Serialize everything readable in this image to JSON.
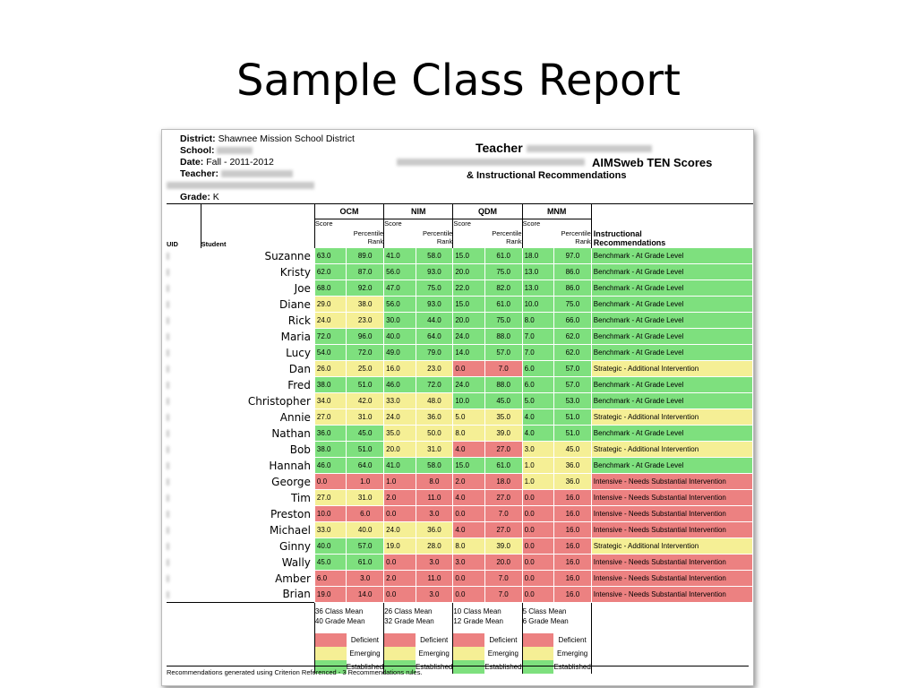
{
  "slide": {
    "title": "Sample Class Report"
  },
  "header": {
    "district_label": "District:",
    "district_value": "Shawnee Mission School District",
    "school_label": "School:",
    "date_label": "Date:",
    "date_value": "Fall - 2011-2012",
    "teacher_label": "Teacher:",
    "grade_label": "Grade:",
    "grade_value": "K",
    "teacher_title": "Teacher",
    "aims_title": "AIMSweb TEN Scores",
    "instr_title": "& Instructional Recommendations"
  },
  "table": {
    "uid_label": "UID",
    "student_label": "Student",
    "groups": [
      "OCM",
      "NIM",
      "QDM",
      "MNM"
    ],
    "score_label": "Score",
    "pr_label_1": "Percentile",
    "pr_label_2": "Rank",
    "rec_label_1": "Instructional",
    "rec_label_2": "Recommendations",
    "colors": {
      "green": "#7ee07e",
      "yellow": "#f5ef95",
      "red": "#ec8181"
    },
    "rows": [
      {
        "name": "Suzanne",
        "vals": [
          "63.0",
          "89.0",
          "41.0",
          "58.0",
          "15.0",
          "61.0",
          "18.0",
          "97.0"
        ],
        "rec": "Benchmark - At Grade Level",
        "c": [
          "g",
          "g",
          "g",
          "g",
          "g"
        ]
      },
      {
        "name": "Kristy",
        "vals": [
          "62.0",
          "87.0",
          "56.0",
          "93.0",
          "20.0",
          "75.0",
          "13.0",
          "86.0"
        ],
        "rec": "Benchmark - At Grade Level",
        "c": [
          "g",
          "g",
          "g",
          "g",
          "g"
        ]
      },
      {
        "name": "Joe",
        "vals": [
          "68.0",
          "92.0",
          "47.0",
          "75.0",
          "22.0",
          "82.0",
          "13.0",
          "86.0"
        ],
        "rec": "Benchmark - At Grade Level",
        "c": [
          "g",
          "g",
          "g",
          "g",
          "g"
        ]
      },
      {
        "name": "Diane",
        "vals": [
          "29.0",
          "38.0",
          "56.0",
          "93.0",
          "15.0",
          "61.0",
          "10.0",
          "75.0"
        ],
        "rec": "Benchmark - At Grade Level",
        "c": [
          "y",
          "g",
          "g",
          "g",
          "g"
        ]
      },
      {
        "name": "Rick",
        "vals": [
          "24.0",
          "23.0",
          "30.0",
          "44.0",
          "20.0",
          "75.0",
          "8.0",
          "66.0"
        ],
        "rec": "Benchmark - At Grade Level",
        "c": [
          "y",
          "g",
          "g",
          "g",
          "g"
        ]
      },
      {
        "name": "Maria",
        "vals": [
          "72.0",
          "96.0",
          "40.0",
          "64.0",
          "24.0",
          "88.0",
          "7.0",
          "62.0"
        ],
        "rec": "Benchmark - At Grade Level",
        "c": [
          "g",
          "g",
          "g",
          "g",
          "g"
        ]
      },
      {
        "name": "Lucy",
        "vals": [
          "54.0",
          "72.0",
          "49.0",
          "79.0",
          "14.0",
          "57.0",
          "7.0",
          "62.0"
        ],
        "rec": "Benchmark - At Grade Level",
        "c": [
          "g",
          "g",
          "g",
          "g",
          "g"
        ]
      },
      {
        "name": "Dan",
        "vals": [
          "26.0",
          "25.0",
          "16.0",
          "23.0",
          "0.0",
          "7.0",
          "6.0",
          "57.0"
        ],
        "rec": "Strategic - Additional Intervention",
        "c": [
          "y",
          "y",
          "r",
          "g",
          "y"
        ]
      },
      {
        "name": "Fred",
        "vals": [
          "38.0",
          "51.0",
          "46.0",
          "72.0",
          "24.0",
          "88.0",
          "6.0",
          "57.0"
        ],
        "rec": "Benchmark - At Grade Level",
        "c": [
          "g",
          "g",
          "g",
          "g",
          "g"
        ]
      },
      {
        "name": "Christopher",
        "vals": [
          "34.0",
          "42.0",
          "33.0",
          "48.0",
          "10.0",
          "45.0",
          "5.0",
          "53.0"
        ],
        "rec": "Benchmark - At Grade Level",
        "c": [
          "y",
          "y",
          "g",
          "g",
          "g"
        ]
      },
      {
        "name": "Annie",
        "vals": [
          "27.0",
          "31.0",
          "24.0",
          "36.0",
          "5.0",
          "35.0",
          "4.0",
          "51.0"
        ],
        "rec": "Strategic - Additional Intervention",
        "c": [
          "y",
          "y",
          "y",
          "g",
          "y"
        ]
      },
      {
        "name": "Nathan",
        "vals": [
          "36.0",
          "45.0",
          "35.0",
          "50.0",
          "8.0",
          "39.0",
          "4.0",
          "51.0"
        ],
        "rec": "Benchmark - At Grade Level",
        "c": [
          "g",
          "y",
          "y",
          "g",
          "g"
        ]
      },
      {
        "name": "Bob",
        "vals": [
          "38.0",
          "51.0",
          "20.0",
          "31.0",
          "4.0",
          "27.0",
          "3.0",
          "45.0"
        ],
        "rec": "Strategic - Additional Intervention",
        "c": [
          "g",
          "y",
          "r",
          "y",
          "y"
        ]
      },
      {
        "name": "Hannah",
        "vals": [
          "46.0",
          "64.0",
          "41.0",
          "58.0",
          "15.0",
          "61.0",
          "1.0",
          "36.0"
        ],
        "rec": "Benchmark - At Grade Level",
        "c": [
          "g",
          "g",
          "g",
          "y",
          "g"
        ]
      },
      {
        "name": "George",
        "vals": [
          "0.0",
          "1.0",
          "1.0",
          "8.0",
          "2.0",
          "18.0",
          "1.0",
          "36.0"
        ],
        "rec": "Intensive - Needs Substantial Intervention",
        "c": [
          "r",
          "r",
          "r",
          "y",
          "r"
        ]
      },
      {
        "name": "Tim",
        "vals": [
          "27.0",
          "31.0",
          "2.0",
          "11.0",
          "4.0",
          "27.0",
          "0.0",
          "16.0"
        ],
        "rec": "Intensive - Needs Substantial Intervention",
        "c": [
          "y",
          "r",
          "r",
          "r",
          "r"
        ]
      },
      {
        "name": "Preston",
        "vals": [
          "10.0",
          "6.0",
          "0.0",
          "3.0",
          "0.0",
          "7.0",
          "0.0",
          "16.0"
        ],
        "rec": "Intensive - Needs Substantial Intervention",
        "c": [
          "r",
          "r",
          "r",
          "r",
          "r"
        ]
      },
      {
        "name": "Michael",
        "vals": [
          "33.0",
          "40.0",
          "24.0",
          "36.0",
          "4.0",
          "27.0",
          "0.0",
          "16.0"
        ],
        "rec": "Intensive - Needs Substantial Intervention",
        "c": [
          "y",
          "y",
          "r",
          "r",
          "r"
        ]
      },
      {
        "name": "Ginny",
        "vals": [
          "40.0",
          "57.0",
          "19.0",
          "28.0",
          "8.0",
          "39.0",
          "0.0",
          "16.0"
        ],
        "rec": "Strategic - Additional Intervention",
        "c": [
          "g",
          "y",
          "y",
          "r",
          "y"
        ]
      },
      {
        "name": "Wally",
        "vals": [
          "45.0",
          "61.0",
          "0.0",
          "3.0",
          "3.0",
          "20.0",
          "0.0",
          "16.0"
        ],
        "rec": "Intensive - Needs Substantial Intervention",
        "c": [
          "g",
          "r",
          "r",
          "r",
          "r"
        ]
      },
      {
        "name": "Amber",
        "vals": [
          "6.0",
          "3.0",
          "2.0",
          "11.0",
          "0.0",
          "7.0",
          "0.0",
          "16.0"
        ],
        "rec": "Intensive - Needs Substantial Intervention",
        "c": [
          "r",
          "r",
          "r",
          "r",
          "r"
        ]
      },
      {
        "name": "Brian",
        "vals": [
          "19.0",
          "14.0",
          "0.0",
          "3.0",
          "0.0",
          "7.0",
          "0.0",
          "16.0"
        ],
        "rec": "Intensive - Needs Substantial Intervention",
        "c": [
          "r",
          "r",
          "r",
          "r",
          "r"
        ]
      }
    ],
    "means": [
      [
        "36 Class Mean",
        "40 Grade Mean"
      ],
      [
        "26 Class Mean",
        "32 Grade Mean"
      ],
      [
        "10 Class Mean",
        "12 Grade Mean"
      ],
      [
        "5 Class Mean",
        "6 Grade Mean"
      ]
    ],
    "key": [
      "Deficient",
      "Emerging",
      "Established"
    ]
  },
  "footer": "Recommendations generated using Criterion Referenced - 3 Recommendations rules."
}
